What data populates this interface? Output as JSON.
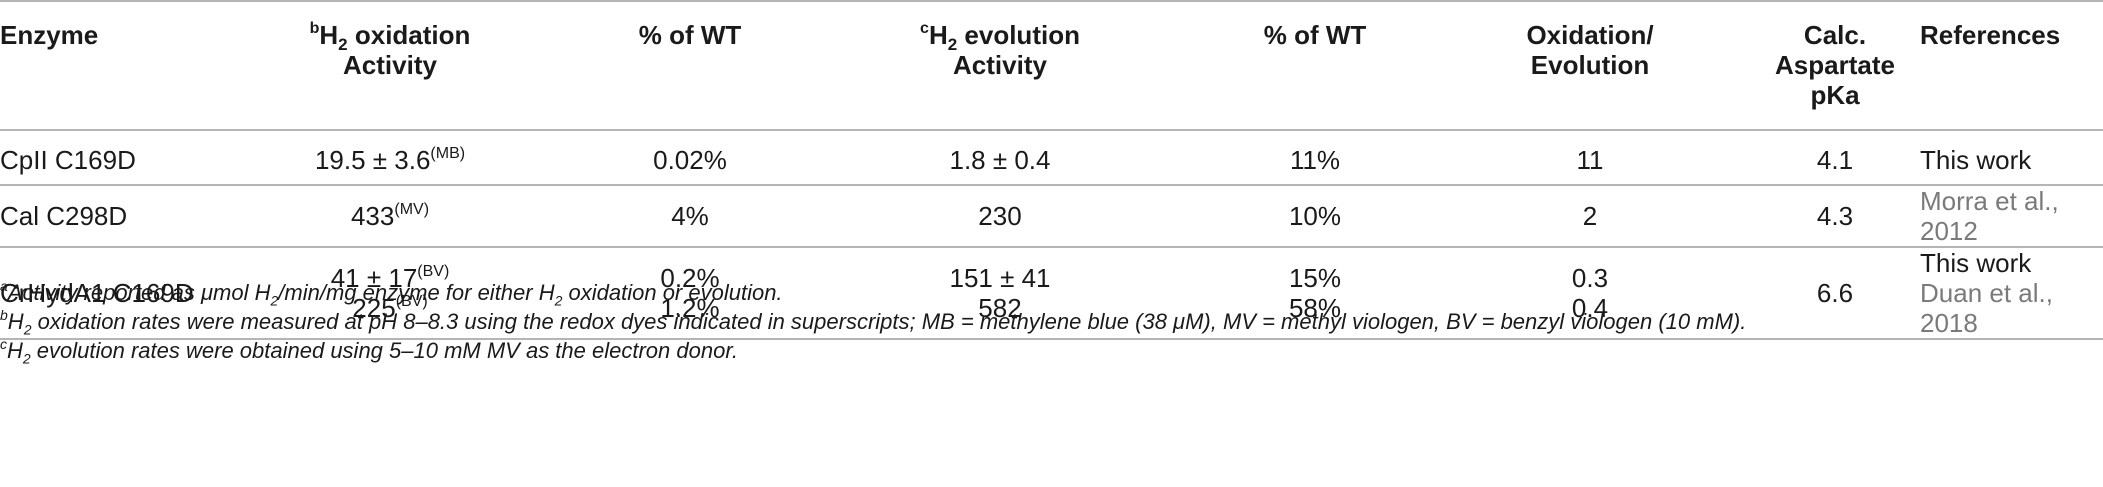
{
  "table": {
    "headers": [
      {
        "line1": "Enzyme",
        "line2": ""
      },
      {
        "sup": "b",
        "pre": "H",
        "sub": "2",
        "post": " oxidation",
        "line2": "Activity"
      },
      {
        "line1": "% of WT",
        "line2": ""
      },
      {
        "sup": "c",
        "pre": "H",
        "sub": "2",
        "post": " evolution",
        "line2": "Activity"
      },
      {
        "line1": "% of WT",
        "line2": ""
      },
      {
        "line1": "Oxidation/",
        "line2": "Evolution"
      },
      {
        "line1": "Calc. Aspartate",
        "line2": "pKa"
      },
      {
        "line1": "References",
        "line2": ""
      }
    ],
    "rows": [
      {
        "enzyme": "CpII C169D",
        "h2_oxidation": [
          {
            "value": "19.5 ± 3.6",
            "sup": "(MB)"
          }
        ],
        "pct_wt_ox": [
          "0.02%"
        ],
        "h2_evolution": [
          "1.8 ± 0.4"
        ],
        "pct_wt_evo": [
          "11%"
        ],
        "ratio": [
          "11"
        ],
        "pka": "4.1",
        "references": [
          "This work"
        ]
      },
      {
        "enzyme": "Cal C298D",
        "h2_oxidation": [
          {
            "value": "433",
            "sup": "(MV)"
          }
        ],
        "pct_wt_ox": [
          "4%"
        ],
        "h2_evolution": [
          "230"
        ],
        "pct_wt_evo": [
          "10%"
        ],
        "ratio": [
          "2"
        ],
        "pka": "4.3",
        "references": [
          "Morra et al., 2012"
        ]
      },
      {
        "enzyme": "CrHydA1 C169D",
        "h2_oxidation": [
          {
            "value": "41 ± 17",
            "sup": "(BV)"
          },
          {
            "value": "225",
            "sup": "(BV)"
          }
        ],
        "pct_wt_ox": [
          "0.2%",
          "1.2%"
        ],
        "h2_evolution": [
          "151 ± 41",
          "582"
        ],
        "pct_wt_evo": [
          "15%",
          "58%"
        ],
        "ratio": [
          "0.3",
          "0.4"
        ],
        "pka": "6.6",
        "references": [
          "This work",
          "Duan et al., 2018"
        ]
      }
    ]
  },
  "footnotes": {
    "a": {
      "sup": "a",
      "t1": "Activity reported as μmol H",
      "sub1": "2",
      "t2": "/min/mg enzyme for either H",
      "sub2": "2",
      "t3": " oxidation or evolution."
    },
    "b": {
      "sup": "b",
      "t1": "H",
      "sub1": "2",
      "t2": " oxidation rates were measured at pH 8–8.3 using the redox dyes indicated in superscripts; MB = methylene blue (38 μM), MV = methyl viologen, BV = benzyl viologen (10 mM)."
    },
    "c": {
      "sup": "c",
      "t1": "H",
      "sub1": "2",
      "t2": " evolution rates were obtained using 5–10 mM MV as the electron donor."
    }
  },
  "colors": {
    "rule": "#b5b5b5",
    "text": "#1a1a1a",
    "reference_link": "#7a7a7a"
  }
}
